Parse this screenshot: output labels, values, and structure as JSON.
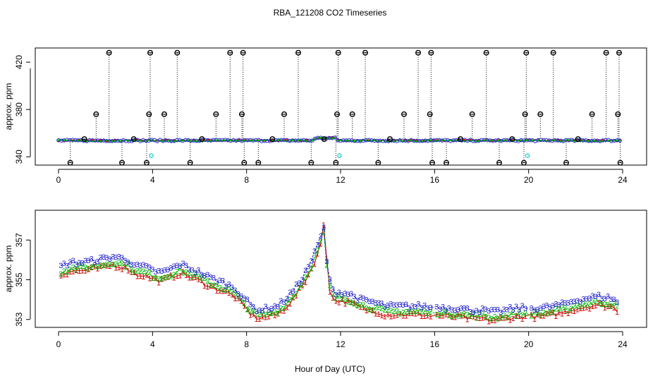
{
  "title": "RBA_121208  CO2 Timeseries",
  "x_axis_label": "Hour of Day (UTC)",
  "chart_data": [
    {
      "type": "scatter",
      "panel": "top",
      "ylabel": "approx. ppm",
      "xlim": [
        0,
        24
      ],
      "ylim": [
        333,
        432
      ],
      "xticks": [
        0,
        4,
        8,
        12,
        16,
        20,
        24
      ],
      "yticks": [
        340,
        380,
        420
      ],
      "series": [
        {
          "color": "#cc0000",
          "marker": "point",
          "baseline": 353.8
        },
        {
          "color": "#00bb00",
          "marker": "point",
          "baseline": 353.6
        },
        {
          "color": "#2222cc",
          "marker": "circle",
          "baseline": 353.8
        },
        {
          "color": "#00cccc",
          "marker": "circle",
          "points": [
            [
              3.95,
              341
            ],
            [
              11.95,
              341
            ],
            [
              19.95,
              341
            ]
          ]
        },
        {
          "color": "#000000",
          "marker": "circle-cross",
          "points": [
            [
              0.5,
              335
            ],
            [
              1.1,
              355
            ],
            [
              1.6,
              376
            ],
            [
              2.15,
              428
            ],
            [
              2.7,
              335
            ],
            [
              3.2,
              355
            ],
            [
              3.75,
              335
            ],
            [
              3.85,
              376
            ],
            [
              3.9,
              428
            ],
            [
              4.5,
              376
            ],
            [
              5.05,
              428
            ],
            [
              5.6,
              335
            ],
            [
              6.1,
              355
            ],
            [
              6.7,
              376
            ],
            [
              7.3,
              428
            ],
            [
              7.8,
              376
            ],
            [
              7.85,
              428
            ],
            [
              7.9,
              335
            ],
            [
              8.5,
              335
            ],
            [
              9.1,
              355
            ],
            [
              9.6,
              376
            ],
            [
              10.2,
              428
            ],
            [
              10.75,
              335
            ],
            [
              11.3,
              355
            ],
            [
              11.8,
              335
            ],
            [
              11.85,
              376
            ],
            [
              11.9,
              428
            ],
            [
              12.5,
              376
            ],
            [
              13.05,
              428
            ],
            [
              13.6,
              335
            ],
            [
              14.1,
              355
            ],
            [
              14.7,
              376
            ],
            [
              15.3,
              428
            ],
            [
              15.8,
              376
            ],
            [
              15.85,
              428
            ],
            [
              15.9,
              335
            ],
            [
              16.5,
              335
            ],
            [
              17.1,
              355
            ],
            [
              17.6,
              376
            ],
            [
              18.2,
              428
            ],
            [
              18.75,
              335
            ],
            [
              19.3,
              355
            ],
            [
              19.8,
              335
            ],
            [
              19.85,
              376
            ],
            [
              19.9,
              428
            ],
            [
              20.5,
              376
            ],
            [
              21.05,
              428
            ],
            [
              21.6,
              335
            ],
            [
              22.1,
              355
            ],
            [
              22.7,
              376
            ],
            [
              23.3,
              428
            ],
            [
              23.8,
              376
            ],
            [
              23.85,
              428
            ],
            [
              23.9,
              335
            ]
          ]
        }
      ]
    },
    {
      "type": "scatter",
      "panel": "bottom",
      "ylabel": "approx. ppm",
      "xlim": [
        0,
        24
      ],
      "ylim": [
        352.6,
        358.5
      ],
      "xticks": [
        0,
        4,
        8,
        12,
        16,
        20,
        24
      ],
      "yticks": [
        353,
        355,
        357
      ],
      "series": [
        {
          "label": "1",
          "color": "#cc0000",
          "offset": -0.35
        },
        {
          "label": "2",
          "color": "#00bb00",
          "offset": -0.2
        },
        {
          "label": "3",
          "color": "#2222cc",
          "offset": 0.08
        }
      ],
      "trend": [
        [
          0.1,
          355.6
        ],
        [
          0.5,
          355.8
        ],
        [
          1.0,
          355.8
        ],
        [
          1.5,
          355.9
        ],
        [
          2.0,
          356.0
        ],
        [
          2.3,
          356.1
        ],
        [
          2.7,
          356.0
        ],
        [
          3.0,
          355.9
        ],
        [
          3.3,
          355.6
        ],
        [
          3.6,
          355.6
        ],
        [
          4.0,
          355.4
        ],
        [
          4.4,
          355.3
        ],
        [
          4.8,
          355.5
        ],
        [
          5.2,
          355.7
        ],
        [
          5.6,
          355.5
        ],
        [
          6.0,
          355.3
        ],
        [
          6.5,
          355.0
        ],
        [
          7.0,
          354.8
        ],
        [
          7.5,
          354.5
        ],
        [
          7.9,
          354.0
        ],
        [
          8.2,
          353.6
        ],
        [
          8.5,
          353.4
        ],
        [
          8.9,
          353.5
        ],
        [
          9.3,
          353.6
        ],
        [
          9.6,
          353.9
        ],
        [
          10.0,
          354.4
        ],
        [
          10.4,
          355.1
        ],
        [
          10.8,
          356.0
        ],
        [
          11.1,
          356.9
        ],
        [
          11.3,
          357.6
        ],
        [
          11.4,
          356.0
        ],
        [
          11.5,
          355.0
        ],
        [
          11.7,
          354.3
        ],
        [
          12.0,
          354.3
        ],
        [
          12.4,
          354.2
        ],
        [
          12.9,
          353.9
        ],
        [
          13.4,
          353.8
        ],
        [
          13.9,
          353.6
        ],
        [
          14.5,
          353.6
        ],
        [
          15.0,
          353.6
        ],
        [
          15.5,
          353.6
        ],
        [
          15.9,
          353.5
        ],
        [
          16.0,
          353.6
        ],
        [
          16.5,
          353.5
        ],
        [
          17.0,
          353.5
        ],
        [
          17.5,
          353.4
        ],
        [
          18.0,
          353.4
        ],
        [
          18.5,
          353.3
        ],
        [
          19.0,
          353.4
        ],
        [
          19.5,
          353.5
        ],
        [
          19.9,
          353.5
        ],
        [
          20.0,
          353.5
        ],
        [
          20.5,
          353.5
        ],
        [
          21.0,
          353.6
        ],
        [
          21.5,
          353.7
        ],
        [
          22.0,
          353.9
        ],
        [
          22.5,
          354.0
        ],
        [
          23.0,
          354.1
        ],
        [
          23.5,
          354.0
        ],
        [
          23.8,
          353.8
        ]
      ]
    }
  ]
}
